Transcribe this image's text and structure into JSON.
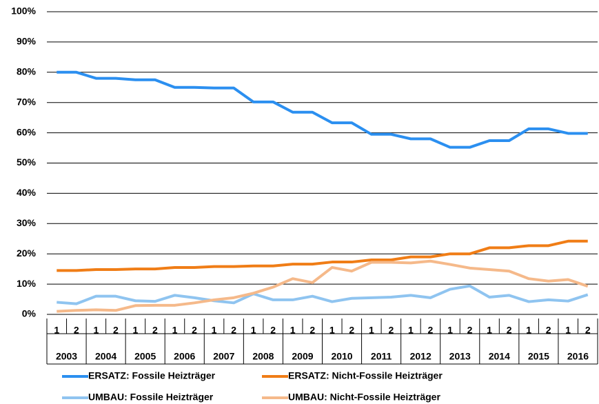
{
  "chart_data": {
    "type": "line",
    "categories": [
      "1",
      "2",
      "1",
      "2",
      "1",
      "2",
      "1",
      "2",
      "1",
      "2",
      "1",
      "2",
      "1",
      "2",
      "1",
      "2",
      "1",
      "2",
      "1",
      "2",
      "1",
      "2",
      "1",
      "2",
      "1",
      "2",
      "1",
      "2"
    ],
    "years": [
      "2003",
      "2004",
      "2005",
      "2006",
      "2007",
      "2008",
      "2009",
      "2010",
      "2011",
      "2012",
      "2013",
      "2014",
      "2015",
      "2016"
    ],
    "ylim": [
      0,
      100
    ],
    "yticks": [
      {
        "value": 0,
        "label": "0%"
      },
      {
        "value": 10,
        "label": "10%"
      },
      {
        "value": 20,
        "label": "20%"
      },
      {
        "value": 30,
        "label": "30%"
      },
      {
        "value": 40,
        "label": "40%"
      },
      {
        "value": 50,
        "label": "50%"
      },
      {
        "value": 60,
        "label": "60%"
      },
      {
        "value": 70,
        "label": "70%"
      },
      {
        "value": 80,
        "label": "80%"
      },
      {
        "value": 90,
        "label": "90%"
      },
      {
        "value": 100,
        "label": "100%"
      }
    ],
    "grid": true,
    "series": [
      {
        "name": "ERSATZ: Fossile Heizträger",
        "color": "#2b8ff0",
        "values": [
          80,
          80,
          78,
          78,
          77.5,
          77.5,
          75,
          75,
          74.8,
          74.8,
          70.2,
          70.2,
          66.8,
          66.8,
          63.3,
          63.3,
          59.5,
          59.5,
          58,
          58,
          55.2,
          55.2,
          57.4,
          57.4,
          61.3,
          61.3,
          59.8,
          59.8
        ]
      },
      {
        "name": "ERSATZ: Nicht-Fossile Heizträger",
        "color": "#f07d16",
        "values": [
          14.5,
          14.5,
          14.8,
          14.8,
          15,
          15,
          15.5,
          15.5,
          15.8,
          15.8,
          16,
          16,
          16.6,
          16.6,
          17.3,
          17.3,
          18,
          18,
          19,
          19,
          20,
          20,
          22,
          22,
          22.7,
          22.7,
          24.2,
          24.2
        ]
      },
      {
        "name": "UMBAU: Fossile Heizträger",
        "color": "#8fc4f0",
        "values": [
          4,
          3.5,
          6,
          6,
          4.5,
          4.3,
          6.3,
          5.5,
          4.5,
          3.8,
          6.8,
          4.8,
          4.8,
          6,
          4.2,
          5.3,
          5.5,
          5.7,
          6.3,
          5.5,
          8.3,
          9.4,
          5.7,
          6.3,
          4.2,
          4.8,
          4.4,
          6.5
        ]
      },
      {
        "name": "UMBAU: Nicht-Fossile Heizträger",
        "color": "#f5b98a",
        "values": [
          1,
          1.3,
          1.5,
          1.3,
          2.9,
          3,
          3,
          3.8,
          4.8,
          5.5,
          7,
          9,
          11.8,
          10.5,
          15.5,
          14.3,
          17.2,
          17.2,
          17,
          17.6,
          16.5,
          15.3,
          14.8,
          14.3,
          11.8,
          11,
          11.5,
          9.3
        ]
      }
    ]
  }
}
